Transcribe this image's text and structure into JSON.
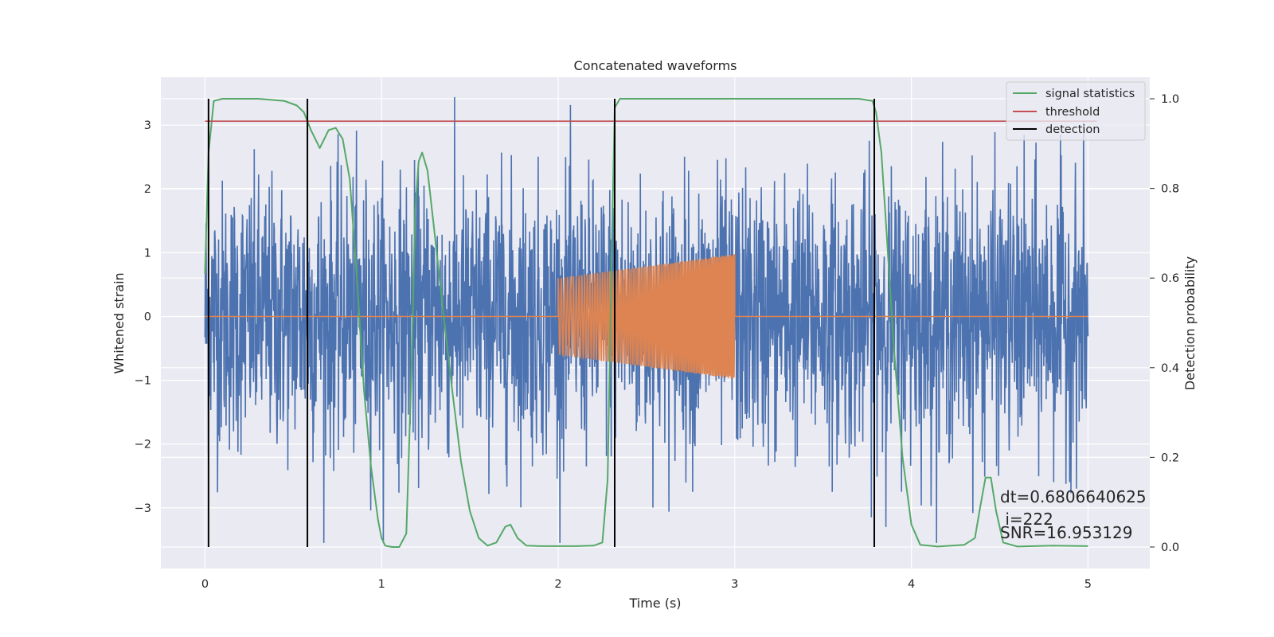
{
  "chart_data": {
    "type": "line",
    "title": "Concatenated waveforms",
    "xlabel": "Time (s)",
    "ylabel": "Whitened strain",
    "y2label": "Detection probability",
    "xlim": [
      -0.25,
      5.35
    ],
    "ylim": [
      -3.95,
      3.75
    ],
    "y2lim": [
      -0.048,
      1.048
    ],
    "xticks": [
      0,
      1,
      2,
      3,
      4,
      5
    ],
    "xtick_labels": [
      "0",
      "1",
      "2",
      "3",
      "4",
      "5"
    ],
    "yticks": [
      -3,
      -2,
      -1,
      0,
      1,
      2,
      3
    ],
    "ytick_labels": [
      "−3",
      "−2",
      "−1",
      "0",
      "1",
      "2",
      "3"
    ],
    "y2ticks": [
      0.0,
      0.2,
      0.4,
      0.6,
      0.8,
      1.0
    ],
    "y2tick_labels": [
      "0.0",
      "0.2",
      "0.4",
      "0.6",
      "0.8",
      "1.0"
    ],
    "grid": true,
    "legend_position": "top-right",
    "legend": [
      {
        "label": "signal statistics",
        "color": "#55a868"
      },
      {
        "label": "threshold",
        "color": "#c44e52"
      },
      {
        "label": "detection",
        "color": "#000000"
      }
    ],
    "series": [
      {
        "role": "whitened strain (noise)",
        "axis": "left",
        "color": "#4c72b0",
        "x_range": [
          0,
          5
        ],
        "approx_envelope": [
          -3.6,
          3.6
        ]
      },
      {
        "role": "injected waveform",
        "axis": "left",
        "color": "#dd8452",
        "x_range": [
          0,
          5
        ],
        "chirp_segment": {
          "x_start": 2.0,
          "x_end": 3.0,
          "amp_start": 0.6,
          "amp_end": 0.98
        }
      },
      {
        "name": "signal statistics",
        "axis": "right",
        "color": "#55a868",
        "x": [
          0,
          0.02,
          0.05,
          0.1,
          0.3,
          0.45,
          0.52,
          0.56,
          0.6,
          0.65,
          0.7,
          0.74,
          0.78,
          0.82,
          0.86,
          0.9,
          0.94,
          0.98,
          1.0,
          1.02,
          1.06,
          1.1,
          1.14,
          1.17,
          1.19,
          1.21,
          1.23,
          1.26,
          1.3,
          1.35,
          1.4,
          1.45,
          1.5,
          1.55,
          1.6,
          1.65,
          1.7,
          1.73,
          1.77,
          1.82,
          1.9,
          2.0,
          2.1,
          2.2,
          2.25,
          2.28,
          2.3,
          2.32,
          2.35,
          2.4,
          2.6,
          3.0,
          3.5,
          3.7,
          3.78,
          3.8,
          3.83,
          3.86,
          3.9,
          3.95,
          4.0,
          4.05,
          4.15,
          4.3,
          4.36,
          4.39,
          4.42,
          4.45,
          4.48,
          4.52,
          4.6,
          4.8,
          5.0
        ],
        "y": [
          0.61,
          0.88,
          0.995,
          1.0,
          1.0,
          0.995,
          0.985,
          0.97,
          0.93,
          0.89,
          0.93,
          0.935,
          0.91,
          0.82,
          0.6,
          0.35,
          0.18,
          0.06,
          0.02,
          0.003,
          0.0,
          0.0,
          0.03,
          0.4,
          0.75,
          0.86,
          0.88,
          0.84,
          0.7,
          0.52,
          0.35,
          0.19,
          0.08,
          0.02,
          0.003,
          0.01,
          0.045,
          0.05,
          0.02,
          0.003,
          0.002,
          0.002,
          0.002,
          0.003,
          0.01,
          0.15,
          0.6,
          0.98,
          1.0,
          1.0,
          1.0,
          1.0,
          1.0,
          1.0,
          0.995,
          0.97,
          0.88,
          0.7,
          0.45,
          0.2,
          0.05,
          0.005,
          0.001,
          0.005,
          0.02,
          0.09,
          0.155,
          0.155,
          0.08,
          0.01,
          0.001,
          0.003,
          0.002
        ]
      },
      {
        "name": "threshold",
        "axis": "right",
        "color": "#c44e52",
        "x": [
          0,
          5.05
        ],
        "y": [
          0.95,
          0.95
        ]
      }
    ],
    "detections": [
      0.02,
      0.58,
      2.32,
      3.79
    ],
    "annotations": [
      "dt=0.6806640625",
      " i=222",
      "SNR=16.953129"
    ]
  }
}
